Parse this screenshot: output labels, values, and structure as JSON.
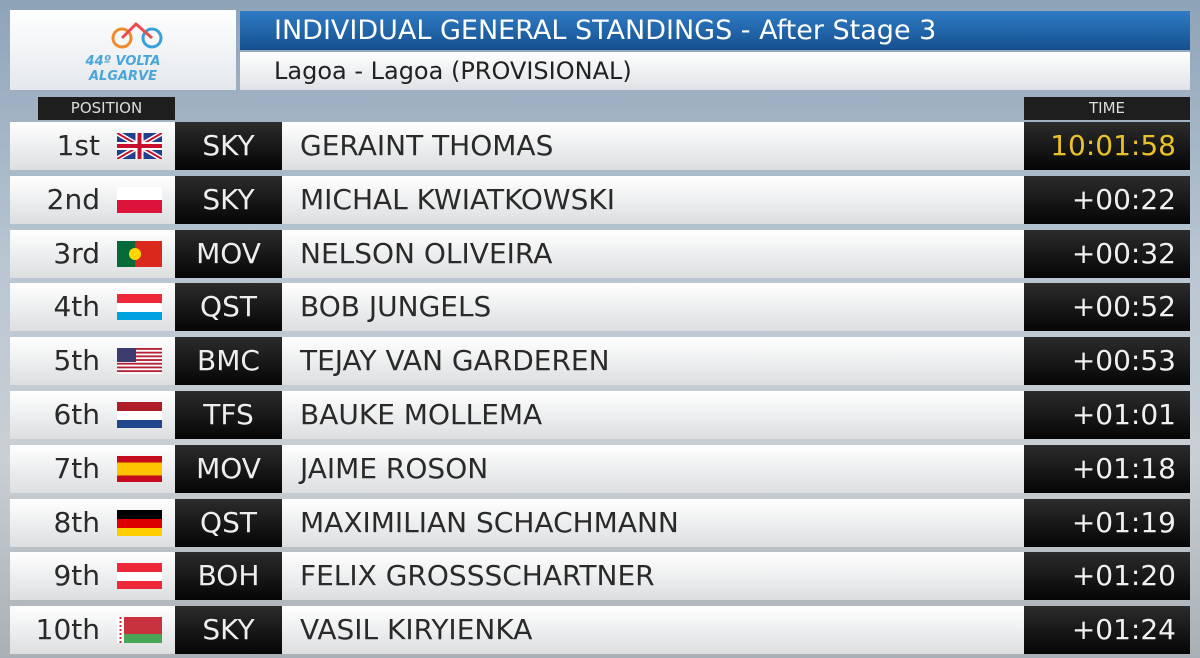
{
  "header": {
    "logo_line1": "44º VOLTA",
    "logo_line2": "ALGARVE",
    "title": "INDIVIDUAL GENERAL STANDINGS - After Stage 3",
    "subtitle": "Lagoa - Lagoa (PROVISIONAL)"
  },
  "table": {
    "columns": {
      "position": "POSITION",
      "time": "TIME"
    },
    "rows": [
      [
        "1st",
        "SKY",
        "GERAINT THOMAS",
        "10:01:58"
      ],
      [
        "2nd",
        "SKY",
        "MICHAL KWIATKOWSKI",
        "+00:22"
      ],
      [
        "3rd",
        "MOV",
        "NELSON OLIVEIRA",
        "+00:32"
      ],
      [
        "4th",
        "QST",
        "BOB JUNGELS",
        "+00:52"
      ],
      [
        "5th",
        "BMC",
        "TEJAY VAN GARDEREN",
        "+00:53"
      ],
      [
        "6th",
        "TFS",
        "BAUKE MOLLEMA",
        "+01:01"
      ],
      [
        "7th",
        "MOV",
        "JAIME ROSON",
        "+01:18"
      ],
      [
        "8th",
        "QST",
        "MAXIMILIAN SCHACHMANN",
        "+01:19"
      ],
      [
        "9th",
        "BOH",
        "FELIX GROSSSCHARTNER",
        "+01:20"
      ],
      [
        "10th",
        "SKY",
        "VASIL KIRYIENKA",
        "+01:24"
      ]
    ]
  }
}
